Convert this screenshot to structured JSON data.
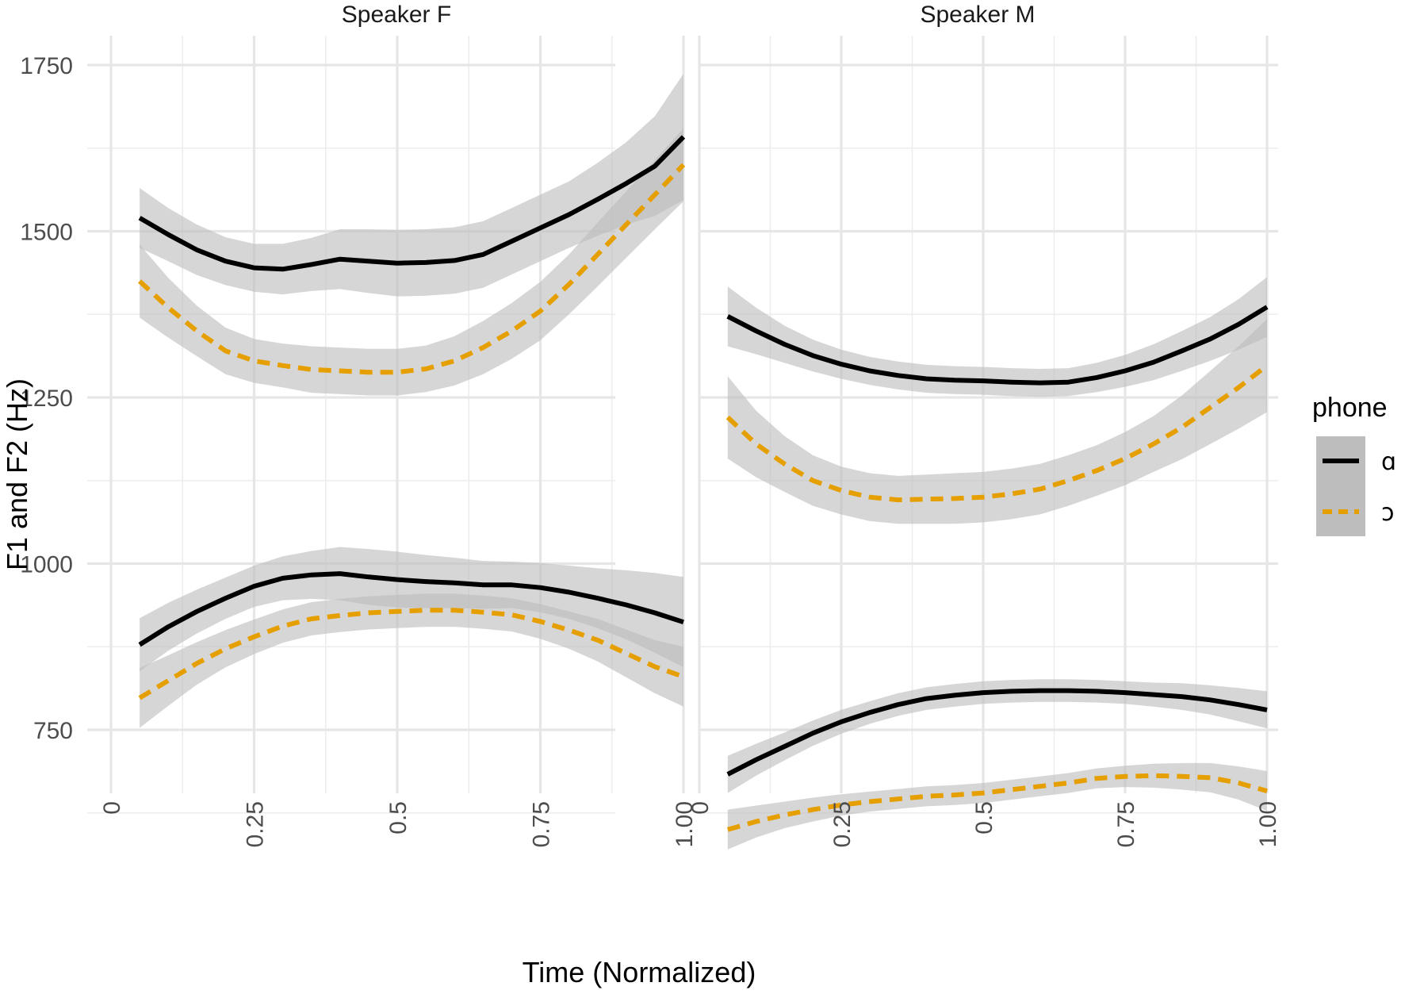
{
  "chart_data": {
    "type": "line",
    "title": "",
    "xlabel": "Time (Normalized)",
    "ylabel": "F1 and F2 (Hz)",
    "xlim": [
      0,
      1
    ],
    "ylim": [
      500,
      1750
    ],
    "x_ticks": [
      0,
      0.25,
      0.5,
      0.75,
      1.0
    ],
    "x_tick_labels": [
      "0",
      "0.25",
      "0.5",
      "0.75",
      "1.00"
    ],
    "y_ticks": [
      750,
      1000,
      1250,
      1500,
      1750
    ],
    "y_tick_labels": [
      "750",
      "1000",
      "1250",
      "1500",
      "1750"
    ],
    "grid": true,
    "confidence_band_color": "#bdbdbd",
    "legend": {
      "title": "phone",
      "position": "right",
      "entries": [
        {
          "label": "ɑ",
          "color": "#000000",
          "dash": "solid"
        },
        {
          "label": "ɔ",
          "color": "#e69f00",
          "dash": "dashed"
        }
      ]
    },
    "x": [
      0.05,
      0.1,
      0.15,
      0.2,
      0.25,
      0.3,
      0.35,
      0.4,
      0.45,
      0.5,
      0.55,
      0.6,
      0.65,
      0.7,
      0.75,
      0.8,
      0.85,
      0.9,
      0.95,
      1.0
    ],
    "panels": [
      {
        "title": "Speaker F",
        "series": [
          {
            "phone": "ɑ",
            "formant": "F2",
            "color": "#000000",
            "dash": "solid",
            "values": [
              1520,
              1495,
              1472,
              1455,
              1445,
              1443,
              1450,
              1458,
              1455,
              1452,
              1453,
              1456,
              1465,
              1485,
              1505,
              1525,
              1548,
              1572,
              1598,
              1642
            ],
            "band": [
              45,
              40,
              38,
              36,
              36,
              38,
              40,
              45,
              48,
              50,
              50,
              50,
              50,
              50,
              50,
              50,
              55,
              62,
              75,
              95
            ]
          },
          {
            "phone": "ɔ",
            "formant": "F2",
            "color": "#e69f00",
            "dash": "dashed",
            "values": [
              1425,
              1385,
              1350,
              1320,
              1305,
              1298,
              1292,
              1290,
              1288,
              1288,
              1293,
              1305,
              1325,
              1350,
              1380,
              1420,
              1465,
              1510,
              1555,
              1600
            ],
            "band": [
              55,
              45,
              38,
              35,
              33,
              33,
              35,
              35,
              35,
              35,
              35,
              37,
              40,
              42,
              44,
              45,
              48,
              50,
              52,
              55
            ]
          },
          {
            "phone": "ɑ",
            "formant": "F1",
            "color": "#000000",
            "dash": "solid",
            "values": [
              878,
              905,
              928,
              948,
              966,
              978,
              983,
              985,
              980,
              976,
              973,
              971,
              968,
              968,
              964,
              957,
              948,
              938,
              926,
              912
            ],
            "band": [
              40,
              36,
              33,
              31,
              31,
              33,
              36,
              40,
              42,
              42,
              40,
              38,
              36,
              35,
              37,
              40,
              45,
              52,
              60,
              68
            ]
          },
          {
            "phone": "ɔ",
            "formant": "F1",
            "color": "#e69f00",
            "dash": "dashed",
            "values": [
              798,
              824,
              850,
              872,
              890,
              906,
              917,
              922,
              926,
              928,
              930,
              930,
              927,
              923,
              913,
              900,
              885,
              865,
              845,
              830
            ],
            "band": [
              45,
              38,
              32,
              28,
              26,
              25,
              25,
              25,
              25,
              25,
              25,
              25,
              25,
              25,
              26,
              28,
              32,
              36,
              40,
              45
            ]
          }
        ]
      },
      {
        "title": "Speaker M",
        "series": [
          {
            "phone": "ɑ",
            "formant": "F2",
            "color": "#000000",
            "dash": "solid",
            "values": [
              1372,
              1350,
              1330,
              1313,
              1300,
              1290,
              1283,
              1278,
              1276,
              1275,
              1273,
              1272,
              1273,
              1280,
              1290,
              1303,
              1320,
              1338,
              1360,
              1386
            ],
            "band": [
              45,
              35,
              28,
              24,
              22,
              21,
              21,
              21,
              21,
              21,
              21,
              21,
              21,
              22,
              24,
              27,
              30,
              33,
              38,
              45
            ]
          },
          {
            "phone": "ɔ",
            "formant": "F2",
            "color": "#e69f00",
            "dash": "dashed",
            "values": [
              1220,
              1180,
              1150,
              1125,
              1110,
              1100,
              1096,
              1097,
              1098,
              1100,
              1105,
              1112,
              1125,
              1140,
              1158,
              1180,
              1205,
              1235,
              1265,
              1298
            ],
            "band": [
              62,
              50,
              42,
              38,
              36,
              36,
              36,
              37,
              38,
              38,
              38,
              38,
              38,
              38,
              40,
              42,
              48,
              55,
              62,
              70
            ]
          },
          {
            "phone": "ɑ",
            "formant": "F1",
            "color": "#000000",
            "dash": "solid",
            "values": [
              683,
              705,
              725,
              745,
              762,
              776,
              788,
              797,
              802,
              806,
              808,
              809,
              809,
              808,
              806,
              803,
              800,
              795,
              788,
              780
            ],
            "band": [
              28,
              24,
              21,
              19,
              18,
              17,
              17,
              17,
              17,
              17,
              17,
              17,
              17,
              17,
              17,
              18,
              20,
              22,
              25,
              28
            ]
          },
          {
            "phone": "ɔ",
            "formant": "F1",
            "color": "#e69f00",
            "dash": "dashed",
            "values": [
              600,
              612,
              622,
              630,
              637,
              642,
              646,
              650,
              652,
              655,
              660,
              665,
              670,
              677,
              680,
              681,
              680,
              678,
              670,
              658
            ],
            "band": [
              30,
              24,
              20,
              18,
              16,
              15,
              15,
              15,
              15,
              15,
              15,
              15,
              15,
              15,
              16,
              18,
              20,
              22,
              25,
              30
            ]
          }
        ]
      }
    ]
  }
}
